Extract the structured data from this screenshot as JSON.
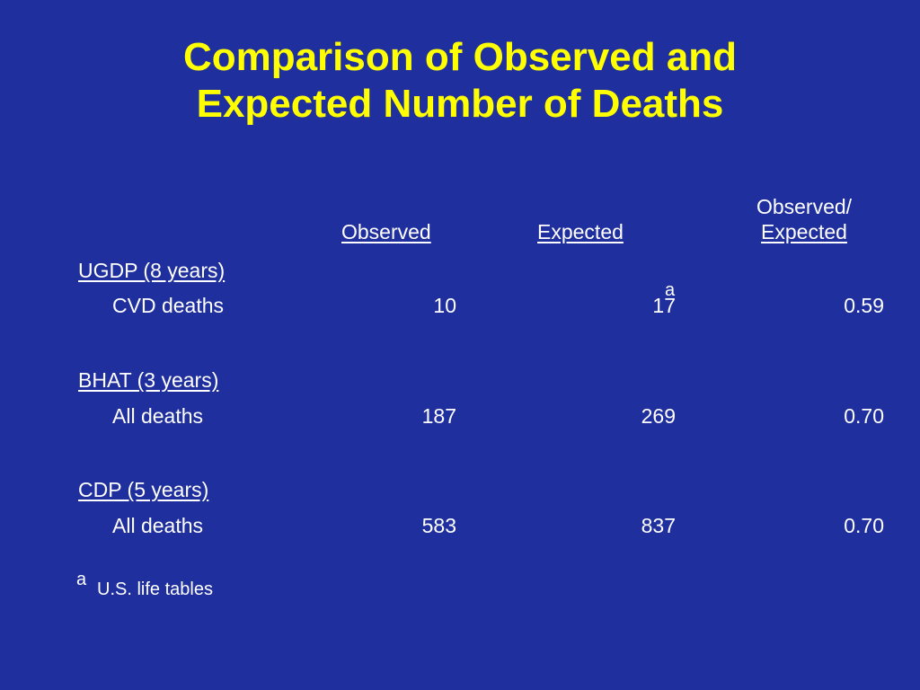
{
  "slide": {
    "title_line1": "Comparison of Observed and",
    "title_line2": "Expected Number of Deaths",
    "background_color": "#1f2f9d",
    "title_color": "#ffff00"
  },
  "table": {
    "headers": {
      "observed": "Observed",
      "expected": "Expected",
      "ratio_line1": "Observed/",
      "ratio_line2": "Expected"
    },
    "groups": [
      {
        "label": "UGDP (8 years)",
        "row_label": "CVD deaths",
        "observed": "10",
        "expected": "17",
        "expected_note": "a",
        "ratio": "0.59"
      },
      {
        "label": "BHAT (3 years)",
        "row_label": "All deaths",
        "observed": "187",
        "expected": "269",
        "ratio": "0.70"
      },
      {
        "label": "CDP (5 years)",
        "row_label": "All deaths",
        "observed": "583",
        "expected": "837",
        "ratio": "0.70"
      }
    ]
  },
  "footnote": {
    "marker": "a",
    "text": "U.S. life tables"
  }
}
